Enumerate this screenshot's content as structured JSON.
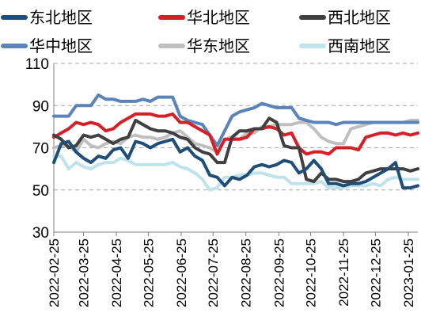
{
  "chart_data": {
    "type": "line",
    "title": "",
    "xlabel": "",
    "ylabel": "",
    "ylim": [
      30,
      110
    ],
    "yticks": [
      30,
      50,
      70,
      90,
      110
    ],
    "ytick_labels": [
      "30",
      "50",
      "70",
      "90",
      "110"
    ],
    "grid": "horizontal dashed",
    "legend_placement": "top",
    "x_tick_labels": [
      "2022-02-25",
      "2022-03-25",
      "2022-04-25",
      "2022-05-25",
      "2022-06-25",
      "2022-07-25",
      "2022-08-25",
      "2022-09-25",
      "2022-10-25",
      "2022-11-25",
      "2022-12-25",
      "2023-01-25"
    ],
    "x": [
      "2022-02-25",
      "2022-03-04",
      "2022-03-11",
      "2022-03-18",
      "2022-03-25",
      "2022-04-01",
      "2022-04-08",
      "2022-04-15",
      "2022-04-22",
      "2022-04-29",
      "2022-05-06",
      "2022-05-13",
      "2022-05-20",
      "2022-05-27",
      "2022-06-03",
      "2022-06-10",
      "2022-06-17",
      "2022-06-24",
      "2022-07-01",
      "2022-07-08",
      "2022-07-15",
      "2022-07-22",
      "2022-07-29",
      "2022-08-05",
      "2022-08-12",
      "2022-08-19",
      "2022-08-26",
      "2022-09-02",
      "2022-09-09",
      "2022-09-16",
      "2022-09-23",
      "2022-09-30",
      "2022-10-07",
      "2022-10-14",
      "2022-10-21",
      "2022-10-28",
      "2022-11-04",
      "2022-11-11",
      "2022-11-18",
      "2022-11-25",
      "2022-12-02",
      "2022-12-09",
      "2022-12-16",
      "2022-12-23",
      "2022-12-30",
      "2023-01-06",
      "2023-01-13",
      "2023-01-20",
      "2023-01-27",
      "2023-02-03"
    ],
    "series": [
      {
        "name": "东北地区",
        "color": "#1f4e79",
        "values": [
          63,
          72,
          73,
          68,
          65,
          63,
          66,
          65,
          69,
          70,
          65,
          73,
          72,
          70,
          72,
          73,
          74,
          68,
          70,
          66,
          64,
          57,
          56,
          52,
          56,
          55,
          57,
          61,
          62,
          61,
          62,
          64,
          63,
          58,
          60,
          64,
          60,
          53,
          53,
          52,
          53,
          53,
          54,
          56,
          58,
          60,
          63,
          51,
          51,
          52
        ]
      },
      {
        "name": "华北地区",
        "color": "#d62027",
        "values": [
          75,
          77,
          79,
          82,
          81,
          82,
          81,
          78,
          79,
          82,
          84,
          86,
          86,
          86,
          85,
          85,
          86,
          82,
          82,
          80,
          78,
          76,
          67,
          74,
          74,
          74,
          75,
          79,
          79,
          80,
          79,
          76,
          77,
          70,
          67,
          68,
          68,
          67,
          70,
          70,
          70,
          69,
          75,
          76,
          77,
          77,
          76,
          77,
          76,
          77
        ]
      },
      {
        "name": "西北地区",
        "color": "#404040",
        "values": [
          76,
          74,
          70,
          71,
          76,
          75,
          76,
          74,
          72,
          74,
          75,
          83,
          81,
          79,
          78,
          78,
          77,
          75,
          74,
          70,
          68,
          67,
          63,
          63,
          75,
          78,
          78,
          79,
          79,
          84,
          82,
          71,
          70,
          70,
          55,
          54,
          58,
          55,
          55,
          54,
          54,
          55,
          58,
          59,
          60,
          60,
          60,
          60,
          59,
          60
        ]
      },
      {
        "name": "华中地区",
        "color": "#5a84b9",
        "values": [
          85,
          85,
          85,
          90,
          90,
          90,
          95,
          93,
          93,
          92,
          92,
          92,
          93,
          92,
          94,
          94,
          94,
          85,
          83,
          82,
          81,
          76,
          71,
          78,
          85,
          87,
          88,
          89,
          91,
          90,
          89,
          89,
          89,
          84,
          83,
          82,
          82,
          82,
          81,
          82,
          82,
          82,
          82,
          82,
          82,
          82,
          82,
          82,
          82,
          82
        ]
      },
      {
        "name": "华东地区",
        "color": "#bfbfbf",
        "values": [
          70,
          71,
          71,
          68,
          74,
          71,
          70,
          72,
          73,
          72,
          75,
          76,
          75,
          75,
          74,
          75,
          77,
          78,
          75,
          72,
          71,
          70,
          68,
          74,
          75,
          74,
          77,
          77,
          80,
          80,
          81,
          81,
          81,
          82,
          82,
          79,
          75,
          73,
          72,
          72,
          79,
          80,
          81,
          82,
          82,
          82,
          82,
          82,
          83,
          83
        ]
      },
      {
        "name": "西南地区",
        "color": "#bfe3ea",
        "values": [
          66,
          66,
          60,
          63,
          61,
          60,
          62,
          63,
          63,
          65,
          64,
          62,
          62,
          62,
          62,
          62,
          63,
          61,
          60,
          58,
          55,
          50,
          51,
          56,
          56,
          57,
          57,
          58,
          58,
          57,
          56,
          56,
          53,
          53,
          53,
          53,
          54,
          51,
          51,
          51,
          52,
          52,
          52,
          53,
          52,
          55,
          56,
          55,
          55,
          55
        ]
      }
    ]
  }
}
